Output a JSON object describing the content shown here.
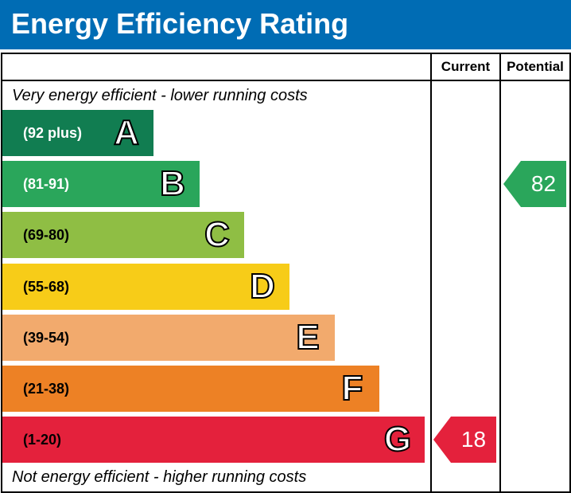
{
  "title": "Energy Efficiency Rating",
  "header_color": "#006cb4",
  "columns": {
    "current": "Current",
    "potential": "Potential"
  },
  "top_note": "Very energy efficient - lower running costs",
  "bottom_note": "Not energy efficient - higher running costs",
  "chart_data": {
    "type": "bar",
    "title": "Energy Efficiency Rating",
    "categories": [
      "A",
      "B",
      "C",
      "D",
      "E",
      "F",
      "G"
    ],
    "bands": [
      {
        "letter": "A",
        "range": "(92 plus)",
        "color": "#117d51",
        "text_color": "#ffffff"
      },
      {
        "letter": "B",
        "range": "(81-91)",
        "color": "#2aa65b",
        "text_color": "#ffffff"
      },
      {
        "letter": "C",
        "range": "(69-80)",
        "color": "#8fbe44",
        "text_color": "#000000"
      },
      {
        "letter": "D",
        "range": "(55-68)",
        "color": "#f7cc18",
        "text_color": "#000000"
      },
      {
        "letter": "E",
        "range": "(39-54)",
        "color": "#f2aa6d",
        "text_color": "#000000"
      },
      {
        "letter": "F",
        "range": "(21-38)",
        "color": "#ed8125",
        "text_color": "#000000"
      },
      {
        "letter": "G",
        "range": "(1-20)",
        "color": "#e4213c",
        "text_color": "#000000"
      }
    ],
    "current": {
      "value": 18,
      "label": "18",
      "band": "G",
      "color": "#e4213c"
    },
    "potential": {
      "value": 82,
      "label": "82",
      "band": "B",
      "color": "#2aa65b"
    }
  }
}
